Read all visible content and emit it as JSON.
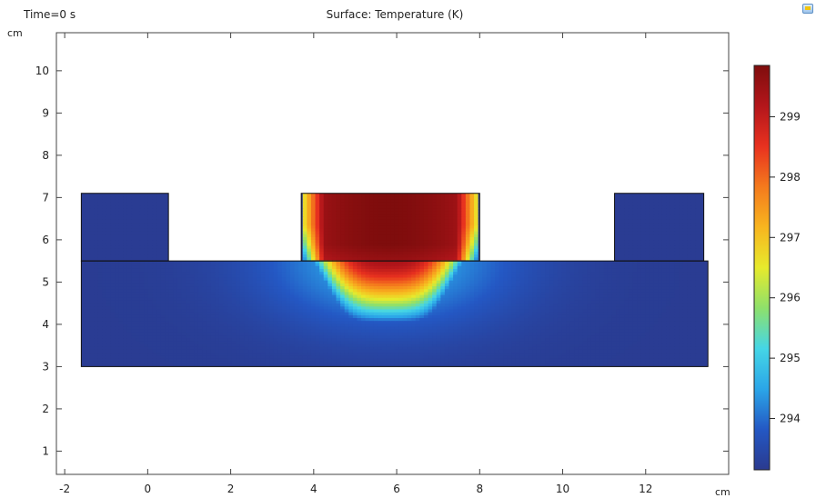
{
  "header": {
    "time_label": "Time=0 s",
    "title": "Surface: Temperature (K)"
  },
  "toolbar": {
    "icon": "window-icon"
  },
  "chart_data": {
    "type": "heatmap",
    "title": "Surface: Temperature (K)",
    "annotation": "Time=0 s",
    "x_unit": "cm",
    "y_unit": "cm",
    "xlim": [
      -2.2,
      14.0
    ],
    "ylim": [
      0.45,
      10.9
    ],
    "x_ticks": [
      -2,
      0,
      2,
      4,
      6,
      8,
      10,
      12
    ],
    "y_ticks": [
      1,
      2,
      3,
      4,
      5,
      6,
      7,
      8,
      9,
      10
    ],
    "colorbar": {
      "label_unit": "K",
      "range": [
        293.15,
        299.85
      ],
      "ticks": [
        294,
        295,
        296,
        297,
        298,
        299
      ],
      "colormap": [
        "#2a3a8f",
        "#2458c4",
        "#2ba6e8",
        "#45d6e6",
        "#8ee06b",
        "#e7ea2c",
        "#f8b51f",
        "#f47a1d",
        "#e8311f",
        "#b3161b",
        "#7f0d0d"
      ]
    },
    "geometry": {
      "base": {
        "x": [
          -1.6,
          13.5
        ],
        "y": [
          3.0,
          5.5
        ]
      },
      "left_block": {
        "x": [
          -1.6,
          0.5
        ],
        "y": [
          5.5,
          7.1
        ]
      },
      "center_block": {
        "x": [
          3.7,
          8.0
        ],
        "y": [
          5.5,
          7.1
        ]
      },
      "right_block": {
        "x": [
          11.25,
          13.4
        ],
        "y": [
          5.5,
          7.1
        ]
      }
    },
    "field": {
      "ambient": 293.2,
      "peak": 299.85,
      "hot_center": [
        5.8,
        7.1
      ],
      "hot_region_x": [
        3.7,
        8.0
      ]
    }
  }
}
